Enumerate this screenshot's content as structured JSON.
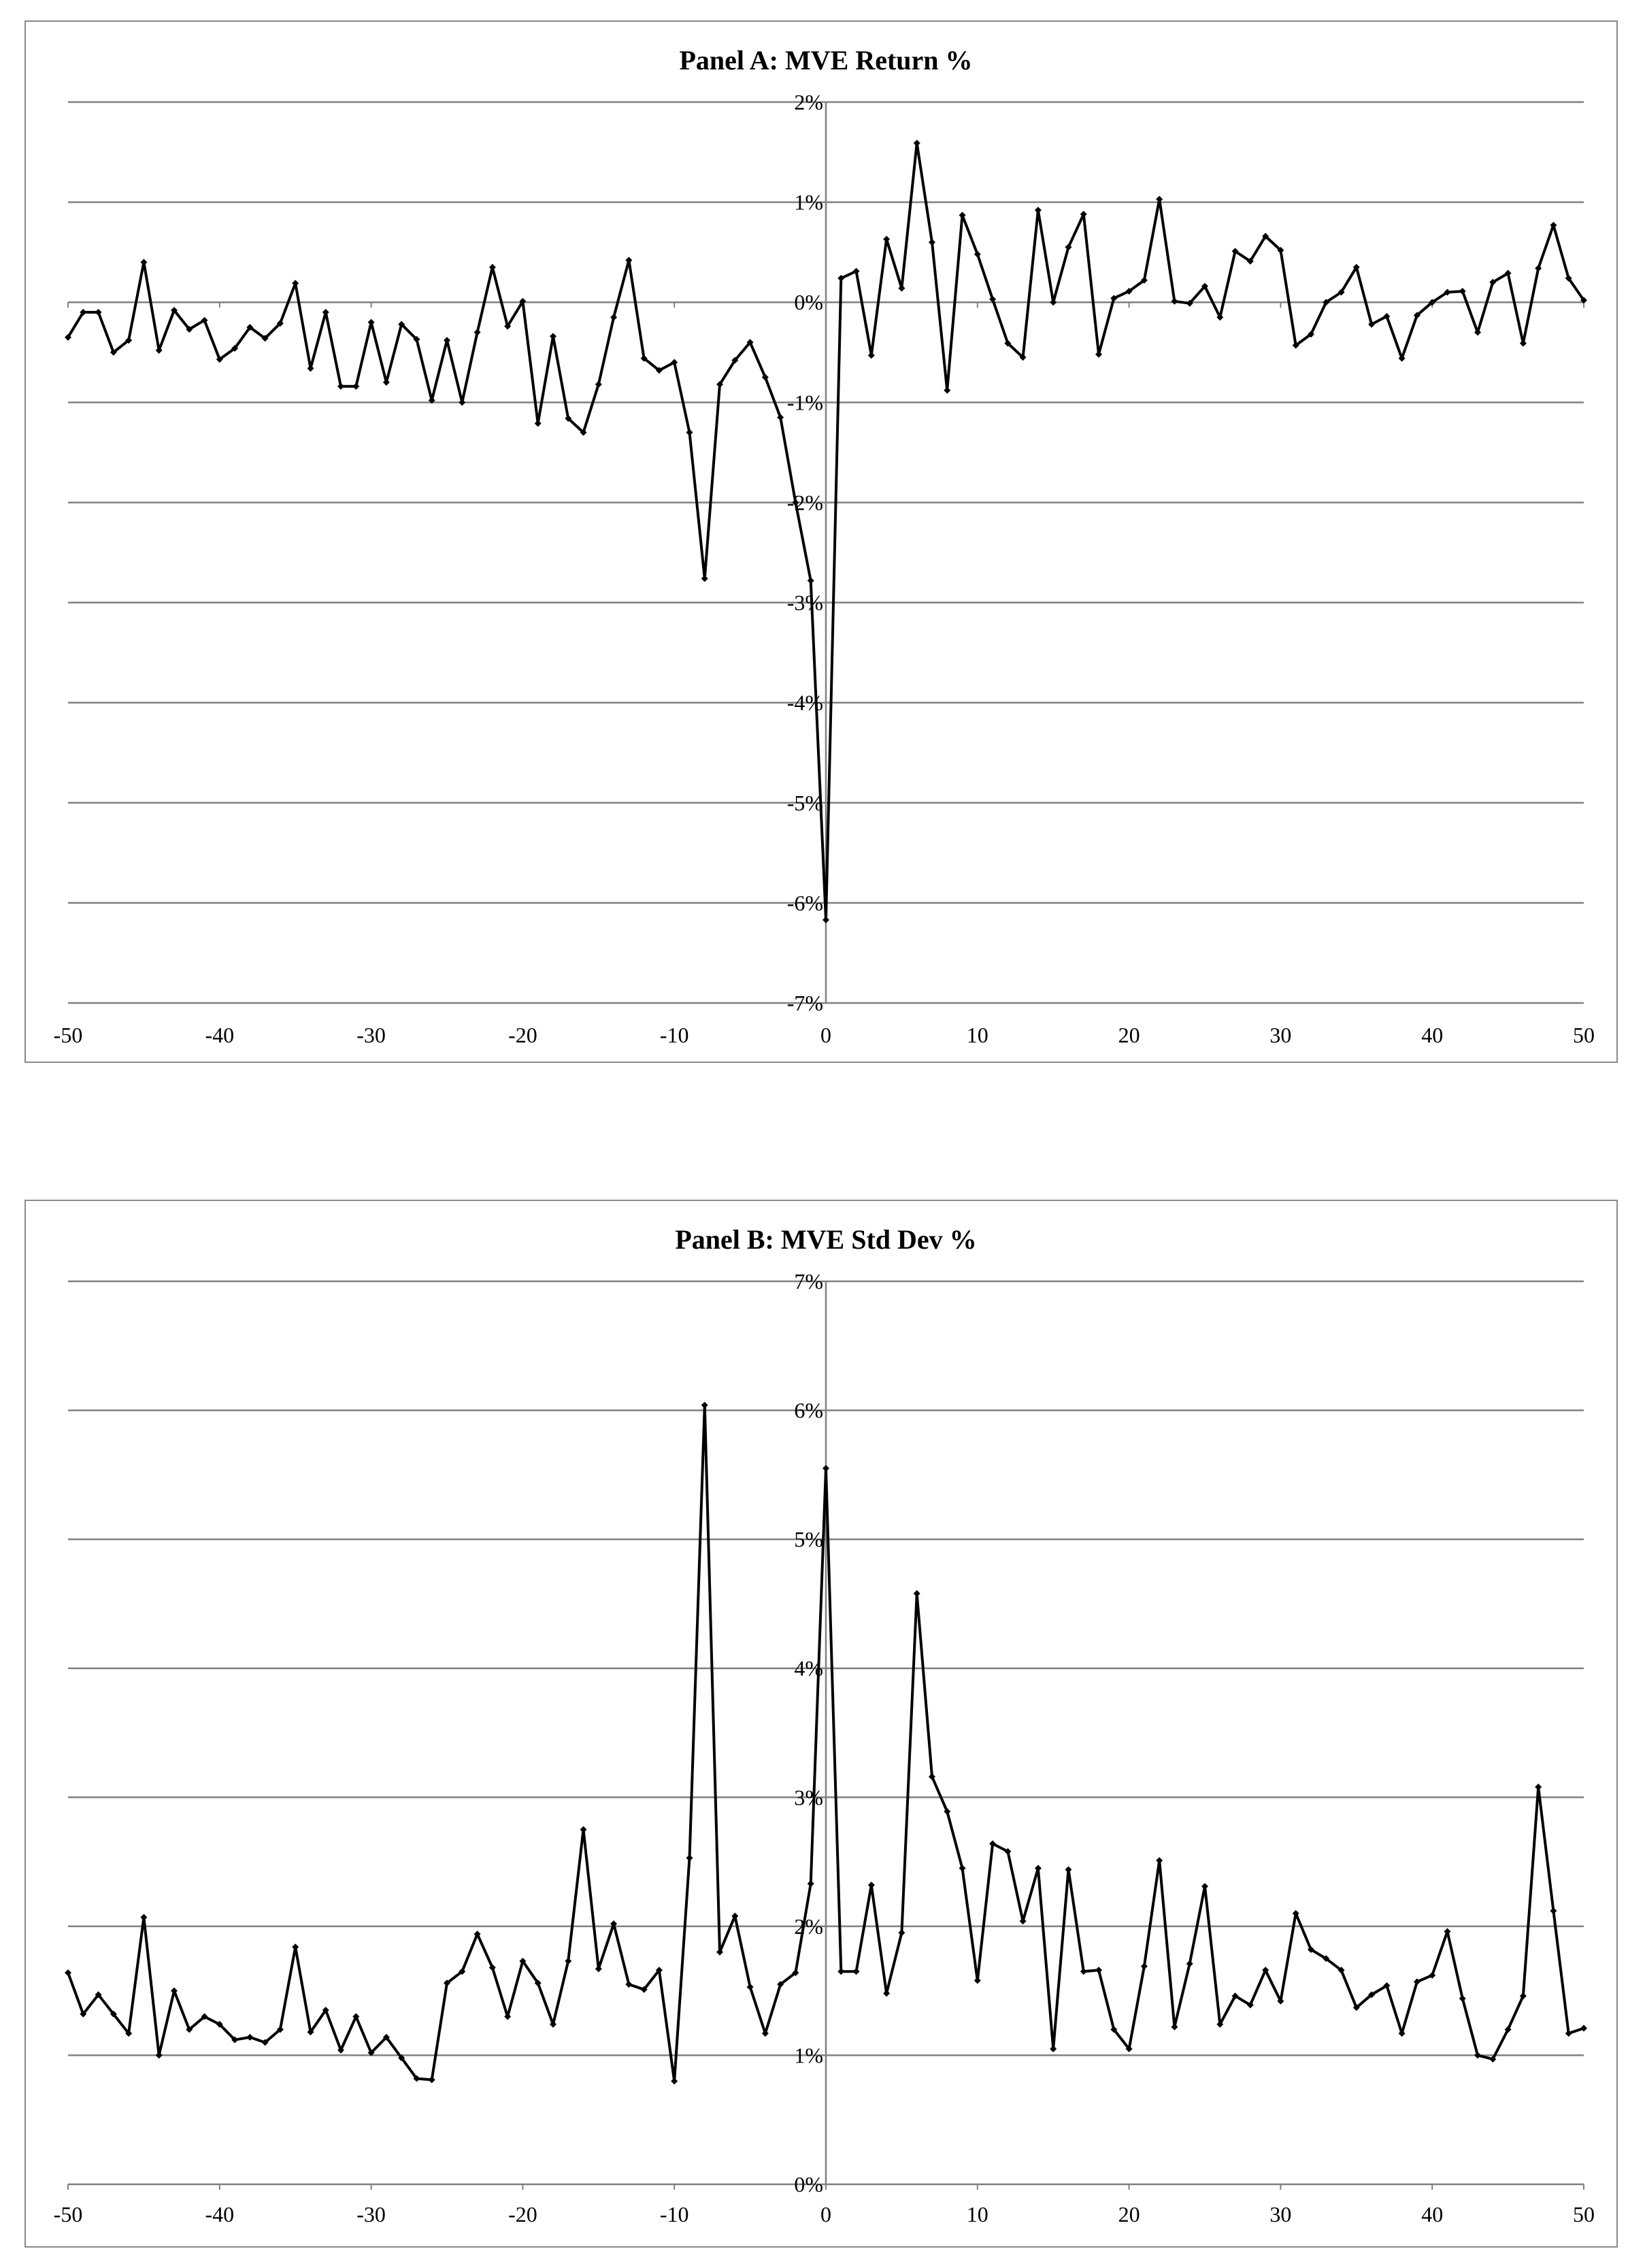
{
  "chart_data": [
    {
      "type": "line",
      "title": "Panel A: MVE Return %",
      "xlabel": "",
      "ylabel": "",
      "xlim": [
        -50,
        50
      ],
      "ylim": [
        -7,
        2
      ],
      "x_ticks": [
        -50,
        -40,
        -30,
        -20,
        -10,
        0,
        10,
        20,
        30,
        40,
        50
      ],
      "y_ticks": [
        2,
        1,
        0,
        -1,
        -2,
        -3,
        -4,
        -5,
        -6,
        -7
      ],
      "y_tick_labels": [
        "2%",
        "1%",
        "0%",
        "-1%",
        "-2%",
        "-3%",
        "-4%",
        "-5%",
        "-6%",
        "-7%"
      ],
      "grid": "horizontal",
      "legend": "none",
      "line_color": "#000000",
      "grid_color": "#808080",
      "series": [
        {
          "x": [
            -50,
            -49,
            -48,
            -47,
            -46,
            -45,
            -44,
            -43,
            -42,
            -41,
            -40,
            -39,
            -38,
            -37,
            -36,
            -35,
            -34,
            -33,
            -32,
            -31,
            -30,
            -29,
            -28,
            -27,
            -26,
            -25,
            -24,
            -23,
            -22,
            -21,
            -20,
            -19,
            -18,
            -17,
            -16,
            -15,
            -14,
            -13,
            -12,
            -11,
            -10,
            -9,
            -8,
            -7,
            -6,
            -5,
            -4,
            -3,
            -2,
            -1,
            0,
            1,
            2,
            3,
            4,
            5,
            6,
            7,
            8,
            9,
            10,
            11,
            12,
            13,
            14,
            15,
            16,
            17,
            18,
            19,
            20,
            21,
            22,
            23,
            24,
            25,
            26,
            27,
            28,
            29,
            30,
            31,
            32,
            33,
            34,
            35,
            36,
            37,
            38,
            39,
            40,
            41,
            42,
            43,
            44,
            45,
            46,
            47,
            48,
            49,
            50
          ],
          "values": [
            -0.35,
            -0.1,
            -0.1,
            -0.5,
            -0.38,
            0.4,
            -0.48,
            -0.08,
            -0.27,
            -0.18,
            -0.57,
            -0.46,
            -0.25,
            -0.36,
            -0.21,
            0.19,
            -0.66,
            -0.1,
            -0.84,
            -0.84,
            -0.2,
            -0.8,
            -0.22,
            -0.37,
            -0.98,
            -0.38,
            -1.0,
            -0.3,
            0.35,
            -0.24,
            0.01,
            -1.21,
            -0.34,
            -1.16,
            -1.3,
            -0.82,
            -0.15,
            0.42,
            -0.56,
            -0.68,
            -0.6,
            -1.3,
            -2.76,
            -0.82,
            -0.58,
            -0.4,
            -0.75,
            -1.15,
            -2.0,
            -2.78,
            -6.17,
            0.24,
            0.31,
            -0.53,
            0.63,
            0.14,
            1.59,
            0.6,
            -0.88,
            0.87,
            0.48,
            0.03,
            -0.41,
            -0.55,
            0.92,
            0.0,
            0.55,
            0.88,
            -0.52,
            0.04,
            0.11,
            0.22,
            1.03,
            0.01,
            -0.01,
            0.16,
            -0.15,
            0.51,
            0.41,
            0.66,
            0.52,
            -0.43,
            -0.32,
            0.0,
            0.1,
            0.35,
            -0.22,
            -0.14,
            -0.56,
            -0.13,
            0.0,
            0.1,
            0.11,
            -0.3,
            0.2,
            0.29,
            -0.41,
            0.34,
            0.77,
            0.24,
            0.02
          ]
        }
      ]
    },
    {
      "type": "line",
      "title": "Panel B: MVE Std Dev %",
      "xlabel": "",
      "ylabel": "",
      "xlim": [
        -50,
        50
      ],
      "ylim": [
        0,
        7
      ],
      "x_ticks": [
        -50,
        -40,
        -30,
        -20,
        -10,
        0,
        10,
        20,
        30,
        40,
        50
      ],
      "y_ticks": [
        7,
        6,
        5,
        4,
        3,
        2,
        1,
        0
      ],
      "y_tick_labels": [
        "7%",
        "6%",
        "5%",
        "4%",
        "3%",
        "2%",
        "1%",
        "0%"
      ],
      "grid": "horizontal",
      "legend": "none",
      "line_color": "#000000",
      "grid_color": "#808080",
      "series": [
        {
          "x": [
            -50,
            -49,
            -48,
            -47,
            -46,
            -45,
            -44,
            -43,
            -42,
            -41,
            -40,
            -39,
            -38,
            -37,
            -36,
            -35,
            -34,
            -33,
            -32,
            -31,
            -30,
            -29,
            -28,
            -27,
            -26,
            -25,
            -24,
            -23,
            -22,
            -21,
            -20,
            -19,
            -18,
            -17,
            -16,
            -15,
            -14,
            -13,
            -12,
            -11,
            -10,
            -9,
            -8,
            -7,
            -6,
            -5,
            -4,
            -3,
            -2,
            -1,
            0,
            1,
            2,
            3,
            4,
            5,
            6,
            7,
            8,
            9,
            10,
            11,
            12,
            13,
            14,
            15,
            16,
            17,
            18,
            19,
            20,
            21,
            22,
            23,
            24,
            25,
            26,
            27,
            28,
            29,
            30,
            31,
            32,
            33,
            34,
            35,
            36,
            37,
            38,
            39,
            40,
            41,
            42,
            43,
            44,
            45,
            46,
            47,
            48,
            49,
            50
          ],
          "values": [
            1.64,
            1.32,
            1.47,
            1.32,
            1.17,
            2.07,
            1.0,
            1.5,
            1.2,
            1.3,
            1.24,
            1.12,
            1.14,
            1.1,
            1.2,
            1.84,
            1.18,
            1.35,
            1.04,
            1.3,
            1.02,
            1.14,
            0.98,
            0.82,
            0.81,
            1.56,
            1.65,
            1.94,
            1.68,
            1.3,
            1.73,
            1.56,
            1.24,
            1.73,
            2.75,
            1.67,
            2.02,
            1.55,
            1.51,
            1.66,
            0.8,
            2.53,
            6.04,
            1.8,
            2.08,
            1.53,
            1.17,
            1.55,
            1.64,
            2.33,
            5.55,
            1.65,
            1.65,
            2.32,
            1.48,
            1.95,
            4.58,
            3.16,
            2.89,
            2.45,
            1.58,
            2.64,
            2.58,
            2.04,
            2.45,
            1.05,
            2.44,
            1.65,
            1.66,
            1.2,
            1.05,
            1.69,
            2.51,
            1.22,
            1.71,
            2.31,
            1.24,
            1.46,
            1.39,
            1.66,
            1.42,
            2.1,
            1.82,
            1.75,
            1.66,
            1.37,
            1.47,
            1.54,
            1.17,
            1.57,
            1.62,
            1.96,
            1.44,
            1.0,
            0.97,
            1.2,
            1.46,
            3.08,
            2.12,
            1.17,
            1.21
          ]
        }
      ]
    }
  ]
}
